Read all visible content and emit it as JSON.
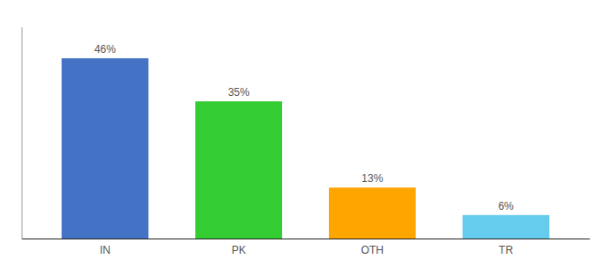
{
  "chart_data": {
    "type": "bar",
    "categories": [
      "IN",
      "PK",
      "OTH",
      "TR"
    ],
    "values": [
      46,
      35,
      13,
      6
    ],
    "value_labels": [
      "46%",
      "35%",
      "13%",
      "6%"
    ],
    "colors": [
      "#4472C4",
      "#33CC33",
      "#FFA500",
      "#66CCEE"
    ],
    "ylim": [
      0,
      54
    ],
    "data_labels": true,
    "tick_labels": "x",
    "grid": false
  }
}
